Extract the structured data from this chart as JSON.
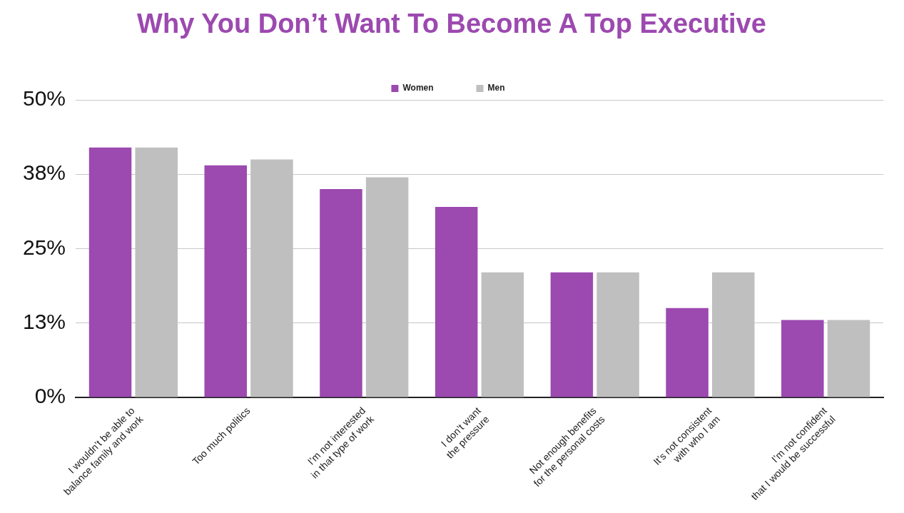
{
  "chart_data": {
    "type": "bar",
    "title": "Why You Don’t Want To Become A Top Executive",
    "categories": [
      "I wouldn’t be able to\nbalance family and work",
      "Too much politics",
      "I’m not interested\nin that type of work",
      "I don’t want\nthe pressure",
      "Not enough benefits\nfor the personal costs",
      "It’s not consistent\nwith who I am",
      "I’m not confident\nthat I would be successful"
    ],
    "series": [
      {
        "name": "Women",
        "color": "#9c49b0",
        "values": [
          42,
          39,
          35,
          32,
          21,
          15,
          13
        ]
      },
      {
        "name": "Men",
        "color": "#bfbfbf",
        "values": [
          42,
          40,
          37,
          21,
          21,
          21,
          13
        ]
      }
    ],
    "ylim": [
      0,
      50
    ],
    "yticks": [
      {
        "value": 0,
        "label": "0%"
      },
      {
        "value": 12.5,
        "label": "13%"
      },
      {
        "value": 25,
        "label": "25%"
      },
      {
        "value": 37.5,
        "label": "38%"
      },
      {
        "value": 50,
        "label": "50%"
      }
    ],
    "grid": "y",
    "legend": "top"
  }
}
